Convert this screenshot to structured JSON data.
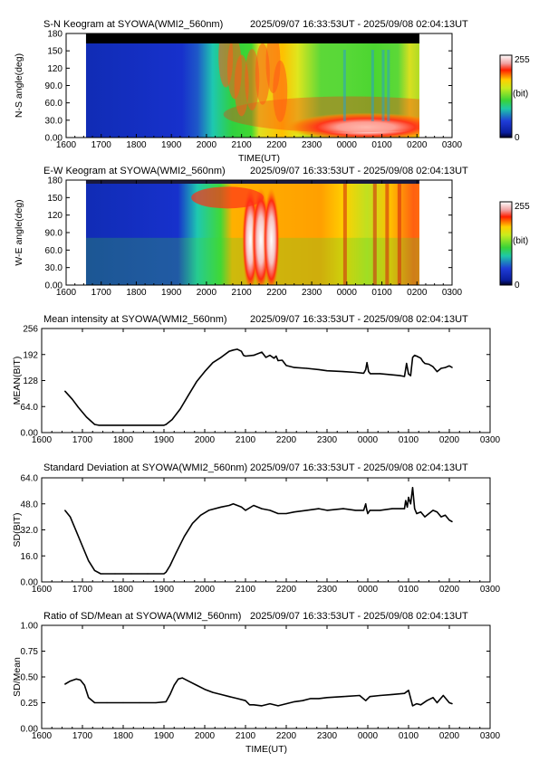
{
  "chart_data": [
    {
      "type": "heatmap",
      "title": "S-N Keogram at SYOWA(WMI2_560nm)",
      "time_range": "2025/09/07 16:33:53UT - 2025/09/08 02:04:13UT",
      "xlabel": "TIME(UT)",
      "ylabel": "N-S angle(deg)",
      "x_ticks": [
        "1600",
        "1700",
        "1800",
        "1900",
        "2000",
        "2100",
        "2200",
        "2300",
        "0000",
        "0100",
        "0200",
        "0300"
      ],
      "y_ticks": [
        "0.00",
        "30.0",
        "60.0",
        "90.0",
        "120",
        "150",
        "180"
      ],
      "xlim": [
        16.0,
        27.0
      ],
      "ylim": [
        0,
        180
      ],
      "data_start": 16.565,
      "data_end": 26.07,
      "colorbar": {
        "min": "0",
        "max": "255",
        "unit": "(bit)"
      },
      "features": [
        {
          "x": 21.7,
          "y": 162,
          "label": "dark band (black) at top of field"
        },
        {
          "x": 18.3,
          "y": 90,
          "value": 20
        },
        {
          "x": 21.8,
          "y": 120,
          "value": 215
        },
        {
          "x": 24.6,
          "y": 18,
          "value": 255
        }
      ]
    },
    {
      "type": "heatmap",
      "title": "E-W Keogram at SYOWA(WMI2_560nm)",
      "time_range": "2025/09/07 16:33:53UT - 2025/09/08 02:04:13UT",
      "xlabel": "",
      "ylabel": "W-E angle(deg)",
      "x_ticks": [
        "1600",
        "1700",
        "1800",
        "1900",
        "2000",
        "2100",
        "2200",
        "2300",
        "0000",
        "0100",
        "0200",
        "0300"
      ],
      "y_ticks": [
        "0.00",
        "30.0",
        "60.0",
        "90.0",
        "120",
        "150",
        "180"
      ],
      "xlim": [
        16.0,
        27.0
      ],
      "ylim": [
        0,
        180
      ],
      "data_start": 16.565,
      "data_end": 26.07,
      "colorbar": {
        "min": "0",
        "max": "255",
        "unit": "(bit)"
      },
      "features": [
        {
          "x": 18.3,
          "y": 90,
          "value": 20
        },
        {
          "x": 21.55,
          "y": 90,
          "value": 250
        },
        {
          "x": 25.3,
          "y": 120,
          "value": 215
        }
      ]
    },
    {
      "type": "line",
      "title": "Mean intensity at SYOWA(WMI2_560nm)",
      "time_range": "2025/09/07 16:33:53UT - 2025/09/08 02:04:13UT",
      "xlabel": "",
      "ylabel": "MEAN(BIT)",
      "x_ticks": [
        "1600",
        "1700",
        "1800",
        "1900",
        "2000",
        "2100",
        "2200",
        "2300",
        "0000",
        "0100",
        "0200",
        "0300"
      ],
      "y_ticks": [
        "0.00",
        "64.0",
        "128",
        "192",
        "256"
      ],
      "xlim": [
        16.0,
        27.0
      ],
      "ylim": [
        0,
        256
      ],
      "series": [
        {
          "x": [
            16.57,
            16.75,
            16.9,
            17.1,
            17.3,
            17.4,
            17.6,
            18.0,
            18.4,
            18.8,
            19.0,
            19.05,
            19.2,
            19.4,
            19.6,
            19.8,
            20.0,
            20.2,
            20.4,
            20.6,
            20.7,
            20.8,
            20.9,
            20.95,
            21.0,
            21.2,
            21.4,
            21.5,
            21.6,
            21.7,
            21.75,
            21.8,
            21.9,
            22.0,
            22.2,
            22.5,
            22.8,
            23.0,
            23.4,
            23.7,
            23.9,
            23.95,
            23.98,
            24.02,
            24.06,
            24.3,
            24.6,
            24.8,
            24.9,
            24.95,
            25.0,
            25.05,
            25.1,
            25.15,
            25.2,
            25.3,
            25.35,
            25.4,
            25.5,
            25.6,
            25.7,
            25.8,
            25.9,
            26.0,
            26.07
          ],
          "y": [
            102,
            82,
            62,
            38,
            20,
            18,
            18,
            18,
            18,
            18,
            18,
            20,
            32,
            58,
            92,
            125,
            150,
            172,
            185,
            200,
            203,
            205,
            200,
            190,
            188,
            190,
            198,
            185,
            190,
            183,
            188,
            177,
            178,
            165,
            160,
            158,
            155,
            152,
            150,
            148,
            146,
            155,
            172,
            150,
            145,
            145,
            142,
            140,
            138,
            170,
            144,
            140,
            185,
            190,
            188,
            183,
            175,
            170,
            168,
            162,
            150,
            158,
            160,
            164,
            160
          ]
        }
      ]
    },
    {
      "type": "line",
      "title": "Standard Deviation at SYOWA(WMI2_560nm)",
      "time_range": "2025/09/07 16:33:53UT - 2025/09/08 02:04:13UT",
      "xlabel": "",
      "ylabel": "SD(BIT)",
      "x_ticks": [
        "1600",
        "1700",
        "1800",
        "1900",
        "2000",
        "2100",
        "2200",
        "2300",
        "0000",
        "0100",
        "0200",
        "0300"
      ],
      "y_ticks": [
        "0.00",
        "16.0",
        "32.0",
        "48.0",
        "64.0"
      ],
      "xlim": [
        16.0,
        27.0
      ],
      "ylim": [
        0,
        64
      ],
      "series": [
        {
          "x": [
            16.57,
            16.7,
            16.85,
            17.0,
            17.15,
            17.3,
            17.45,
            17.5,
            17.8,
            18.2,
            18.6,
            19.0,
            19.05,
            19.15,
            19.3,
            19.5,
            19.7,
            19.9,
            20.1,
            20.4,
            20.6,
            20.7,
            20.9,
            21.0,
            21.2,
            21.4,
            21.6,
            21.8,
            22.0,
            22.2,
            22.5,
            22.8,
            23.0,
            23.4,
            23.7,
            23.9,
            23.95,
            23.97,
            24.0,
            24.05,
            24.3,
            24.6,
            24.8,
            24.9,
            24.93,
            24.97,
            25.0,
            25.05,
            25.1,
            25.15,
            25.2,
            25.3,
            25.4,
            25.5,
            25.6,
            25.7,
            25.8,
            25.9,
            26.0,
            26.07
          ],
          "y": [
            44,
            40,
            31,
            22,
            13,
            7,
            5,
            5,
            5,
            5,
            5,
            5,
            6,
            10,
            18,
            28,
            36,
            41,
            44,
            46,
            47,
            48,
            46,
            44,
            47,
            45,
            44,
            42,
            42,
            43,
            44,
            45,
            44,
            45,
            44,
            44,
            48,
            45,
            42,
            44,
            44,
            45,
            45,
            45,
            50,
            46,
            52,
            48,
            58,
            45,
            42,
            43,
            40,
            42,
            44,
            43,
            40,
            41,
            38,
            37
          ]
        }
      ]
    },
    {
      "type": "line",
      "title": "Ratio of SD/Mean at SYOWA(WMI2_560nm)",
      "time_range": "2025/09/07 16:33:53UT - 2025/09/08 02:04:13UT",
      "xlabel": "TIME(UT)",
      "ylabel": "SD/Mean",
      "x_ticks": [
        "1600",
        "1700",
        "1800",
        "1900",
        "2000",
        "2100",
        "2200",
        "2300",
        "0000",
        "0100",
        "0200",
        "0300"
      ],
      "y_ticks": [
        "0.00",
        "0.25",
        "0.50",
        "0.75",
        "1.00"
      ],
      "xlim": [
        16.0,
        27.0
      ],
      "ylim": [
        0,
        1.0
      ],
      "series": [
        {
          "x": [
            16.57,
            16.7,
            16.85,
            16.95,
            17.05,
            17.15,
            17.3,
            17.6,
            18.0,
            18.4,
            18.8,
            19.05,
            19.15,
            19.25,
            19.35,
            19.45,
            19.6,
            19.8,
            20.0,
            20.2,
            20.4,
            20.6,
            20.8,
            21.0,
            21.1,
            21.2,
            21.4,
            21.6,
            21.8,
            22.0,
            22.2,
            22.4,
            22.6,
            22.8,
            23.0,
            23.4,
            23.8,
            23.95,
            24.05,
            24.3,
            24.6,
            24.9,
            25.0,
            25.1,
            25.2,
            25.3,
            25.45,
            25.6,
            25.7,
            25.85,
            26.0,
            26.07
          ],
          "y": [
            0.43,
            0.46,
            0.48,
            0.47,
            0.42,
            0.3,
            0.25,
            0.25,
            0.25,
            0.25,
            0.25,
            0.26,
            0.33,
            0.42,
            0.48,
            0.49,
            0.46,
            0.42,
            0.38,
            0.35,
            0.33,
            0.31,
            0.29,
            0.27,
            0.23,
            0.23,
            0.22,
            0.24,
            0.22,
            0.24,
            0.26,
            0.27,
            0.29,
            0.29,
            0.3,
            0.31,
            0.32,
            0.27,
            0.31,
            0.32,
            0.33,
            0.34,
            0.37,
            0.22,
            0.24,
            0.23,
            0.27,
            0.3,
            0.25,
            0.32,
            0.25,
            0.24
          ]
        }
      ]
    }
  ]
}
